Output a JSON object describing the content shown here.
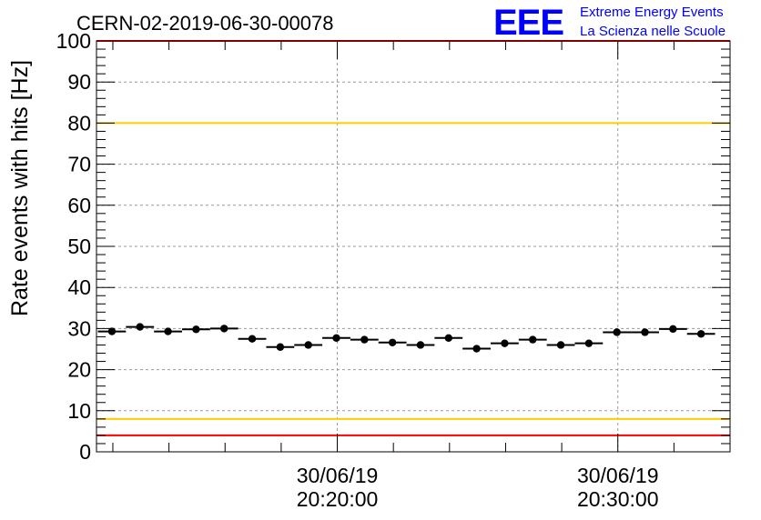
{
  "chart_data": {
    "type": "scatter",
    "title": "CERN-02-2019-06-30-00078",
    "ylabel": "Rate events with hits [Hz]",
    "xlabel": "",
    "ylim": [
      0,
      100
    ],
    "yticks": [
      0,
      10,
      20,
      30,
      40,
      50,
      60,
      70,
      80,
      90,
      100
    ],
    "xlim": [
      "2019-06-30 20:11:25",
      "2019-06-30 20:34:00"
    ],
    "xtick_labels": [
      {
        "date": "30/06/19",
        "time": "20:20:00"
      },
      {
        "date": "30/06/19",
        "time": "20:30:00"
      }
    ],
    "grid": true,
    "bin_seconds": 60,
    "x": [
      "20:11:58",
      "20:12:58",
      "20:13:58",
      "20:14:58",
      "20:15:58",
      "20:16:58",
      "20:17:58",
      "20:18:58",
      "20:19:58",
      "20:20:58",
      "20:21:58",
      "20:22:58",
      "20:23:58",
      "20:24:58",
      "20:25:58",
      "20:26:58",
      "20:27:58",
      "20:28:58",
      "20:29:58",
      "20:30:58",
      "20:31:58",
      "20:32:58",
      "20:33:38"
    ],
    "values": [
      29.3,
      30.4,
      29.3,
      29.8,
      30.0,
      27.5,
      25.5,
      26.0,
      27.7,
      27.3,
      26.6,
      26.0,
      27.7,
      25.1,
      26.4,
      27.3,
      26.0,
      26.4,
      29.1,
      29.1,
      29.9,
      28.7,
      null
    ],
    "reference_lines": [
      {
        "y": 100,
        "color": "#ff0000"
      },
      {
        "y": 80,
        "color": "#ffcc00"
      },
      {
        "y": 8,
        "color": "#ffcc00"
      },
      {
        "y": 4,
        "color": "#ff0000"
      }
    ],
    "logo": {
      "mark": "EEE",
      "line1": "Extreme Energy Events",
      "line2": "La Scienza nelle Scuole",
      "color": "#0000ff"
    }
  }
}
